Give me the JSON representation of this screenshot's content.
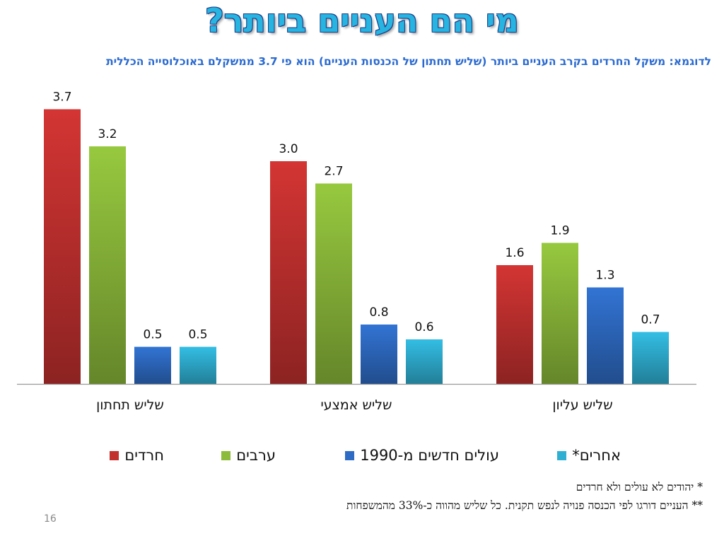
{
  "title": "מי הם העניים ביותר?",
  "subtitle": "לדוגמא: משקל החרדים בקרב העניים ביותר (שליש תחתון של הכנסות העניים) הוא פי 3.7 ממשקלם באוכלוסייה הכללית",
  "chart_data": {
    "type": "bar",
    "categories": [
      "שליש תחתון",
      "שליש אמצעי",
      "שליש עליון"
    ],
    "series": [
      {
        "name": "חרדים",
        "values": [
          3.7,
          3.0,
          1.6
        ],
        "color": "#c3312f"
      },
      {
        "name": "ערבים",
        "values": [
          3.2,
          2.7,
          1.9
        ],
        "color": "#8cba3a"
      },
      {
        "name": "עולים חדשים מ-1990",
        "values": [
          0.5,
          0.8,
          1.3
        ],
        "color": "#2e6bc4"
      },
      {
        "name": "אחרים*",
        "values": [
          0.5,
          0.6,
          0.7
        ],
        "color": "#2fb0d3"
      }
    ],
    "ylim": [
      0,
      4
    ],
    "data_labels": true,
    "grid": false,
    "legend": "bottom"
  },
  "notes": [
    "* יהודים לא עולים ולא חרדים",
    "** העניים דורגו לפי הכנסה פנויה לנפש תקנית. כל שליש מהווה כ-33% מהמשפחות"
  ],
  "page_number": "16"
}
